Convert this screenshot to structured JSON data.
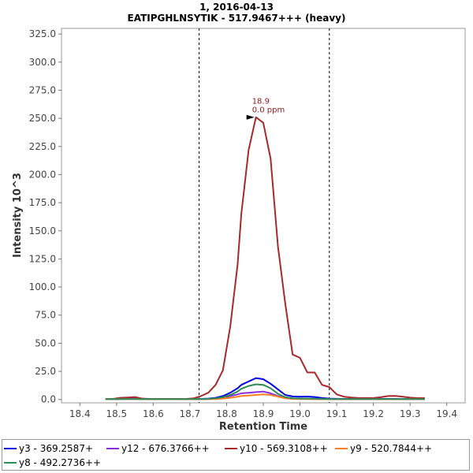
{
  "chart_data": {
    "type": "line",
    "title": "1, 2016-04-13",
    "subtitle": "EATIPGHLNSYTIK - 517.9467+++ (heavy)",
    "xlabel": "Retention Time",
    "ylabel": "Intensity  10^3",
    "xlim": [
      18.35,
      19.45
    ],
    "ylim": [
      -3,
      330
    ],
    "xticks": [
      18.4,
      18.5,
      18.6,
      18.7,
      18.8,
      18.9,
      19.0,
      19.1,
      19.2,
      19.3,
      19.4
    ],
    "xtick_labels": [
      "18.4",
      "18.5",
      "18.6",
      "18.7",
      "18.8",
      "18.9",
      "19.0",
      "19.1",
      "19.2",
      "19.3",
      "19.4"
    ],
    "yticks": [
      0,
      25,
      50,
      75,
      100,
      125,
      150,
      175,
      200,
      225,
      250,
      275,
      300,
      325
    ],
    "ytick_labels": [
      "0.0",
      "25.0",
      "50.0",
      "75.0",
      "100.0",
      "125.0",
      "150.0",
      "175.0",
      "200.0",
      "225.0",
      "250.0",
      "275.0",
      "300.0",
      "325.0"
    ],
    "grid": false,
    "legend_position": "bottom",
    "integration_boundaries": [
      18.725,
      19.08
    ],
    "annotation": {
      "x": 18.88,
      "y": 251,
      "label_rt": "18.9",
      "label_ppm": "0.0 ppm"
    },
    "x": [
      18.47,
      18.49,
      18.51,
      18.53,
      18.55,
      18.57,
      18.59,
      18.61,
      18.63,
      18.65,
      18.67,
      18.69,
      18.71,
      18.73,
      18.75,
      18.77,
      18.79,
      18.81,
      18.83,
      18.84,
      18.86,
      18.88,
      18.9,
      18.92,
      18.94,
      18.96,
      18.98,
      19.0,
      19.02,
      19.04,
      19.06,
      19.08,
      19.1,
      19.12,
      19.14,
      19.16,
      19.18,
      19.2,
      19.22,
      19.24,
      19.26,
      19.28,
      19.3,
      19.32,
      19.34
    ],
    "series": [
      {
        "name": "y3 - 369.2587+",
        "color": "#0000e0",
        "values": [
          0.3,
          0.3,
          0.4,
          0.5,
          0.5,
          0.4,
          0.3,
          0.3,
          0.3,
          0.3,
          0.3,
          0.3,
          0.4,
          0.5,
          0.8,
          1.5,
          3,
          6,
          10,
          13,
          16,
          19,
          18,
          14,
          9,
          4,
          2.7,
          2.5,
          2.6,
          2.2,
          1.3,
          0.8,
          0.6,
          0.5,
          0.5,
          0.5,
          0.6,
          0.6,
          0.5,
          0.5,
          0.5,
          0.4,
          0.4,
          0.3,
          0.3
        ]
      },
      {
        "name": "y12 - 676.3766++",
        "color": "#8a2be2",
        "values": [
          0.2,
          0.2,
          1,
          1.2,
          1.3,
          0.8,
          0.3,
          0.2,
          0.2,
          0.2,
          0.2,
          0.2,
          0.3,
          0.3,
          0.4,
          0.6,
          1.5,
          3,
          4.5,
          5.5,
          6,
          6.5,
          7,
          5.5,
          3,
          1.2,
          0.6,
          0.5,
          0.5,
          0.4,
          0.3,
          0.3,
          0.2,
          0.2,
          0.2,
          0.2,
          0.2,
          0.2,
          0.2,
          0.2,
          0.2,
          0.2,
          0.2,
          0.2,
          0.2
        ]
      },
      {
        "name": "y10 - 569.3108++",
        "color": "#a52a2a",
        "values": [
          0.5,
          0.5,
          1.5,
          1.8,
          2.2,
          0.8,
          0.5,
          0.5,
          0.5,
          0.5,
          0.5,
          0.5,
          1,
          3,
          6,
          13,
          26,
          65,
          120,
          165,
          222,
          251,
          246,
          214,
          136,
          85,
          40,
          37,
          24,
          24,
          13,
          11,
          4.5,
          2.5,
          1.8,
          1.3,
          1.3,
          1.3,
          2,
          3,
          3.2,
          2.5,
          1.6,
          1.2,
          1.2
        ]
      },
      {
        "name": "y9 - 520.7844++",
        "color": "#ff7f24",
        "values": [
          0.2,
          0.2,
          0.3,
          0.3,
          0.3,
          0.2,
          0.2,
          0.2,
          0.2,
          0.2,
          0.2,
          0.2,
          0.2,
          0.2,
          0.3,
          0.4,
          0.8,
          1.5,
          2.5,
          3,
          3.5,
          4,
          4.5,
          4,
          2.5,
          1,
          0.5,
          0.4,
          0.3,
          0.3,
          0.2,
          0.2,
          0.2,
          0.2,
          0.2,
          0.2,
          0.2,
          0.2,
          0.2,
          0.2,
          0.2,
          0.2,
          0.2,
          0.2,
          0.2
        ]
      },
      {
        "name": "y8 - 492.2736++",
        "color": "#2e8b57",
        "values": [
          0.3,
          0.3,
          0.4,
          0.4,
          0.4,
          0.3,
          0.3,
          0.3,
          0.3,
          0.3,
          0.3,
          0.3,
          0.3,
          0.4,
          0.6,
          1,
          2,
          4,
          7,
          9.5,
          12,
          13.5,
          13,
          10,
          5,
          2,
          1,
          0.8,
          0.8,
          0.7,
          0.5,
          0.4,
          0.3,
          0.3,
          0.3,
          0.3,
          0.3,
          0.3,
          0.3,
          0.3,
          0.3,
          0.3,
          0.3,
          0.3,
          0.3
        ]
      }
    ]
  }
}
